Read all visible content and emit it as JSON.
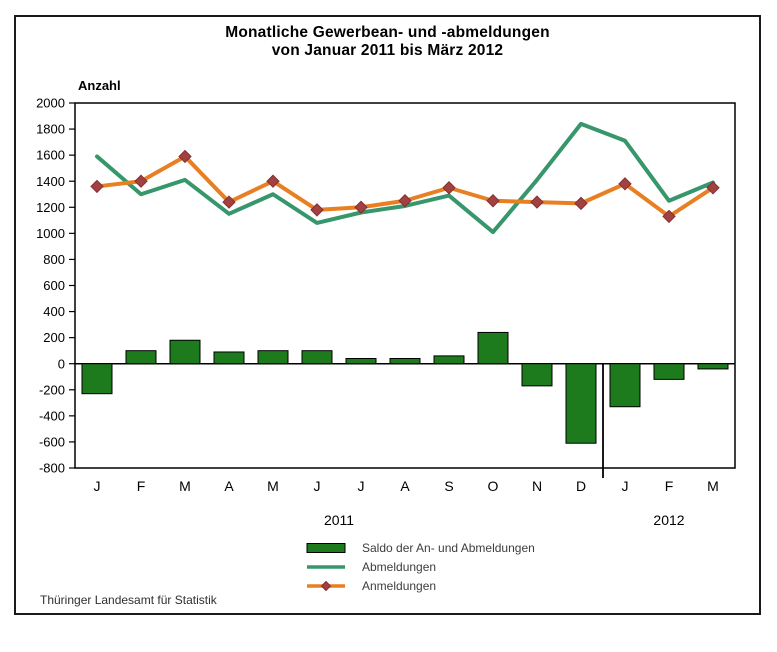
{
  "title": {
    "line1": "Monatliche Gewerbean- und -abmeldungen",
    "line2": "von Januar 2011 bis März 2012"
  },
  "axis": {
    "y_label": "Anzahl"
  },
  "footer": {
    "source": "Thüringer Landesamt für Statistik"
  },
  "legend": [
    {
      "type": "bar",
      "label": "Saldo der An- und Abmeldungen",
      "color": "#1d7b1d",
      "border": "#000000"
    },
    {
      "type": "line",
      "label": "Abmeldungen",
      "color": "#37966b"
    },
    {
      "type": "line-marker",
      "label": "Anmeldungen",
      "color": "#e87f22",
      "marker_color": "#a34141",
      "marker_border": "#823030"
    }
  ],
  "chart_data": {
    "type": "bar",
    "title": "Monatliche Gewerbean- und -abmeldungen von Januar 2011 bis März 2012",
    "ylabel": "Anzahl",
    "xlabel": "",
    "ylim": [
      -800,
      2000
    ],
    "ytick_step": 200,
    "grid": false,
    "legend_position": "bottom",
    "categories": [
      "J",
      "F",
      "M",
      "A",
      "M",
      "J",
      "J",
      "A",
      "S",
      "O",
      "N",
      "D",
      "J",
      "F",
      "M"
    ],
    "year_groups": [
      {
        "label": "2011",
        "span": 12
      },
      {
        "label": "2012",
        "span": 3
      }
    ],
    "series": [
      {
        "name": "Saldo der An- und Abmeldungen",
        "kind": "bar",
        "color": "#1d7b1d",
        "border": "#000000",
        "values": [
          -230,
          100,
          180,
          90,
          100,
          100,
          40,
          40,
          60,
          240,
          -170,
          -610,
          -330,
          -120,
          -40
        ]
      },
      {
        "name": "Abmeldungen",
        "kind": "line",
        "color": "#37966b",
        "values": [
          1590,
          1300,
          1410,
          1150,
          1300,
          1080,
          1160,
          1210,
          1290,
          1010,
          1410,
          1840,
          1710,
          1250,
          1390
        ]
      },
      {
        "name": "Anmeldungen",
        "kind": "line",
        "marker": "diamond",
        "color": "#e87f22",
        "marker_color": "#a34141",
        "marker_border": "#823030",
        "values": [
          1360,
          1400,
          1590,
          1240,
          1400,
          1180,
          1200,
          1250,
          1350,
          1250,
          1240,
          1230,
          1380,
          1130,
          1350
        ]
      }
    ]
  }
}
